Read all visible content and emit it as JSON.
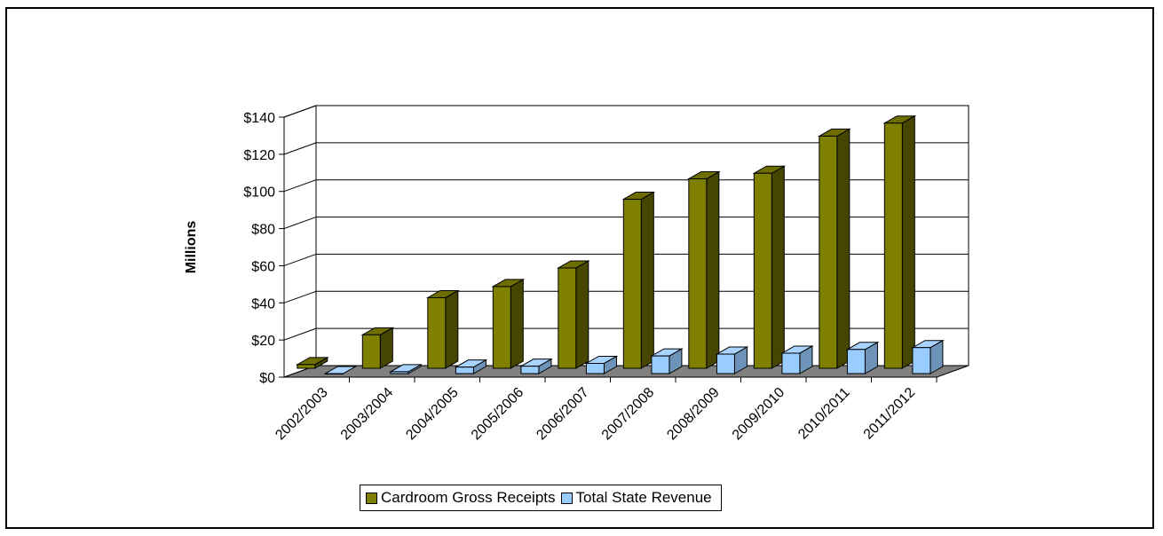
{
  "chart_data": {
    "type": "bar",
    "title": "",
    "xlabel": "",
    "ylabel": "Millions",
    "ylim": [
      0,
      140
    ],
    "yticks": [
      "$0",
      "$20",
      "$40",
      "$60",
      "$80",
      "$100",
      "$120",
      "$140"
    ],
    "ytick_values": [
      0,
      20,
      40,
      60,
      80,
      100,
      120,
      140
    ],
    "categories": [
      "2002/2003",
      "2003/2004",
      "2004/2005",
      "2005/2006",
      "2006/2007",
      "2007/2008",
      "2008/2009",
      "2009/2010",
      "2010/2011",
      "2011/2012"
    ],
    "series": [
      {
        "name": "Cardroom Gross Receipts",
        "color": "#808000",
        "values": [
          2,
          18,
          38,
          44,
          54,
          91,
          102,
          105,
          125,
          132
        ]
      },
      {
        "name": "Total State Revenue",
        "color": "#99CCFF",
        "values": [
          0,
          1,
          3.5,
          4,
          5.5,
          9.5,
          10.5,
          11,
          13,
          14
        ]
      }
    ],
    "grid": true,
    "legend_position": "bottom",
    "style": "3d-column"
  }
}
